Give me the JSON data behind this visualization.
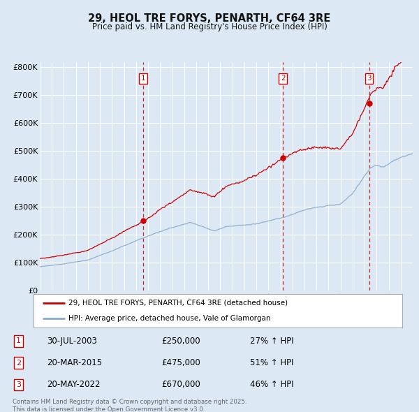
{
  "title": "29, HEOL TRE FORYS, PENARTH, CF64 3RE",
  "subtitle": "Price paid vs. HM Land Registry's House Price Index (HPI)",
  "background_color": "#dce9f5",
  "plot_bg_color": "#dce9f5",
  "y_ticks": [
    0,
    100000,
    200000,
    300000,
    400000,
    500000,
    600000,
    700000,
    800000
  ],
  "y_tick_labels": [
    "£0",
    "£100K",
    "£200K",
    "£300K",
    "£400K",
    "£500K",
    "£600K",
    "£700K",
    "£800K"
  ],
  "ylim": [
    0,
    820000
  ],
  "x_start_year": 1995,
  "x_end_year": 2026,
  "red_line_color": "#cc0000",
  "blue_line_color": "#88aacc",
  "transaction_years": [
    2003.583,
    2015.208,
    2022.375
  ],
  "transaction_prices": [
    250000,
    475000,
    670000
  ],
  "transaction_labels": [
    "1",
    "2",
    "3"
  ],
  "transaction_date_strs": [
    "30-JUL-2003",
    "20-MAR-2015",
    "20-MAY-2022"
  ],
  "transaction_prices_str": [
    "£250,000",
    "£475,000",
    "£670,000"
  ],
  "transaction_hpi_pcts": [
    "27% ↑ HPI",
    "51% ↑ HPI",
    "46% ↑ HPI"
  ],
  "legend_label_red": "29, HEOL TRE FORYS, PENARTH, CF64 3RE (detached house)",
  "legend_label_blue": "HPI: Average price, detached house, Vale of Glamorgan",
  "footer_text": "Contains HM Land Registry data © Crown copyright and database right 2025.\nThis data is licensed under the Open Government Licence v3.0.",
  "grid_color": "#ffffff",
  "vline_color": "#cc0000"
}
